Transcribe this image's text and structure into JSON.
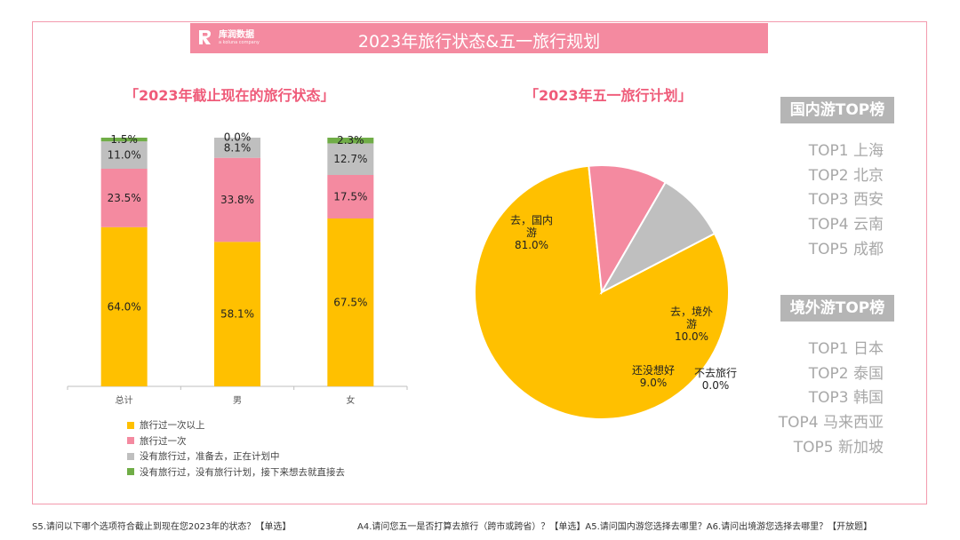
{
  "banner": {
    "title": "2023年旅行状态&五一旅行规划",
    "logo_text": "库润数据",
    "logo_sub": "a koluna company"
  },
  "left_title": "「2023年截止现在的旅行状态」",
  "right_title": "「2023年五一旅行计划」",
  "chart_data": [
    {
      "type": "bar",
      "stacked": true,
      "title": "「2023年截止现在的旅行状态」",
      "categories": [
        "总计",
        "男",
        "女"
      ],
      "ylim": [
        0,
        100
      ],
      "series": [
        {
          "name": "旅行过一次以上",
          "values": [
            64.0,
            58.1,
            67.5
          ],
          "labels": [
            "64.0%",
            "58.1%",
            "67.5%"
          ],
          "color": "#ffc000"
        },
        {
          "name": "旅行过一次",
          "values": [
            23.5,
            33.8,
            17.5
          ],
          "labels": [
            "23.5%",
            "33.8%",
            "17.5%"
          ],
          "color": "#f48aa0"
        },
        {
          "name": "没有旅行过，准备去，正在计划中",
          "values": [
            11.0,
            8.1,
            12.7
          ],
          "labels": [
            "11.0%",
            "8.1%",
            "12.7%"
          ],
          "color": "#bfbfbf"
        },
        {
          "name": "没有旅行过，没有旅行计划，接下来想去就直接去",
          "values": [
            1.5,
            0.0,
            2.3
          ],
          "labels": [
            "1.5%",
            "0.0%",
            "2.3%"
          ],
          "color": "#70ad47"
        }
      ]
    },
    {
      "type": "pie",
      "title": "「2023年五一旅行计划」",
      "slices": [
        {
          "label": "去，国内游",
          "value": 81.0,
          "pct": "81.0%",
          "color": "#ffc000"
        },
        {
          "label": "去，境外游",
          "value": 10.0,
          "pct": "10.0%",
          "color": "#f48aa0"
        },
        {
          "label": "还没想好",
          "value": 9.0,
          "pct": "9.0%",
          "color": "#bfbfbf"
        },
        {
          "label": "不去旅行",
          "value": 0.0,
          "pct": "0.0%",
          "color": "#70ad47"
        }
      ]
    }
  ],
  "domestic": {
    "title": "国内游TOP榜",
    "items": [
      "TOP1 上海",
      "TOP2 北京",
      "TOP3 西安",
      "TOP4 云南",
      "TOP5 成都"
    ]
  },
  "abroad": {
    "title": "境外游TOP榜",
    "items": [
      "TOP1 日本",
      "TOP2 泰国",
      "TOP3 韩国",
      "TOP4 马来西亚",
      "TOP5 新加坡"
    ]
  },
  "footer": {
    "left": "S5.请问以下哪个选项符合截止到现在您2023年的状态？【单选】",
    "right": "A4.请问您五一是否打算去旅行（跨市或跨省）？【单选】A5.请问国内游您选择去哪里？A6.请问出境游您选择去哪里？【开放题】"
  }
}
